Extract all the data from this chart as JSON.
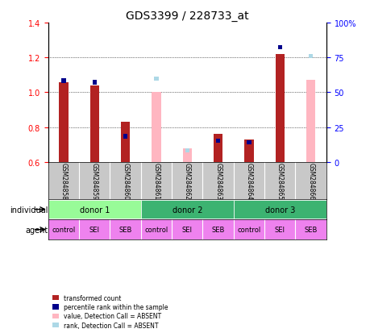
{
  "title": "GDS3399 / 228733_at",
  "samples": [
    "GSM284858",
    "GSM284859",
    "GSM284860",
    "GSM284861",
    "GSM284862",
    "GSM284863",
    "GSM284864",
    "GSM284865",
    "GSM284866"
  ],
  "red_values": [
    1.06,
    1.04,
    0.83,
    null,
    null,
    0.76,
    0.73,
    1.22,
    null
  ],
  "blue_values": [
    1.055,
    1.045,
    0.735,
    null,
    null,
    0.71,
    0.7,
    1.245,
    null
  ],
  "pink_values": [
    null,
    null,
    null,
    1.0,
    0.68,
    null,
    null,
    null,
    1.07
  ],
  "lightblue_values": [
    null,
    null,
    null,
    1.065,
    0.655,
    null,
    null,
    null,
    1.195
  ],
  "ylim": [
    0.6,
    1.4
  ],
  "y2lim": [
    0,
    100
  ],
  "yticks": [
    0.6,
    0.8,
    1.0,
    1.2,
    1.4
  ],
  "y2ticks": [
    0,
    25,
    50,
    75,
    100
  ],
  "y2ticklabels": [
    "0",
    "25",
    "50",
    "75",
    "100%"
  ],
  "donors": [
    {
      "label": "donor 1",
      "start": 0,
      "end": 3,
      "color": "#90EE90"
    },
    {
      "label": "donor 2",
      "start": 3,
      "end": 6,
      "color": "#32CD32"
    },
    {
      "label": "donor 3",
      "start": 6,
      "end": 9,
      "color": "#32CD32"
    }
  ],
  "agents": [
    "control",
    "SEI",
    "SEB",
    "control",
    "SEI",
    "SEB",
    "control",
    "SEI",
    "SEB"
  ],
  "agent_color": "#EE82EE",
  "bar_width": 0.35,
  "red_color": "#B22222",
  "blue_color": "#00008B",
  "pink_color": "#FFB6C1",
  "lightblue_color": "#ADD8E6",
  "grid_color": "#000000",
  "bg_color": "#FFFFFF",
  "axis_bg": "#FFFFFF",
  "sample_bg": "#C8C8C8",
  "donor1_color": "#98FB98",
  "donor2_color": "#3CB371",
  "donor3_color": "#3CB371"
}
